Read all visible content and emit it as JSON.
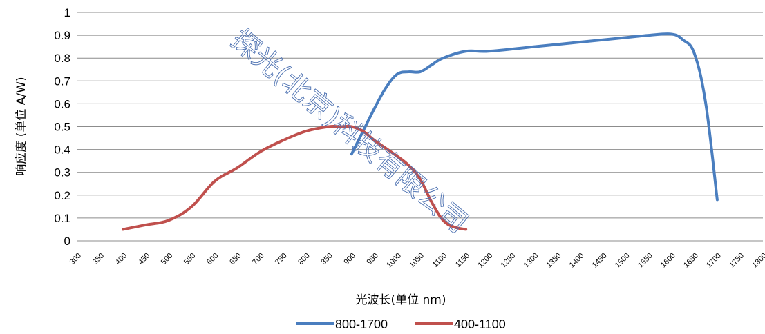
{
  "chart_data": {
    "type": "line",
    "title": "",
    "xlabel": "光波长(单位 nm)",
    "ylabel": "响应度 (单位 A/W)",
    "x_categories": [
      "300",
      "350",
      "400",
      "450",
      "500",
      "550",
      "600",
      "650",
      "700",
      "750",
      "800",
      "850",
      "900",
      "950",
      "1000",
      "1050",
      "1100",
      "1150",
      "1200",
      "1250",
      "1300",
      "1350",
      "1400",
      "1450",
      "1500",
      "1550",
      "1600",
      "1650",
      "1700",
      "1750",
      "1800"
    ],
    "y_ticks": [
      "0",
      "0.1",
      "0.2",
      "0.3",
      "0.4",
      "0.5",
      "0.6",
      "0.7",
      "0.8",
      "0.9",
      "1"
    ],
    "ylim": [
      0,
      1
    ],
    "xlim": [
      300,
      1800
    ],
    "grid": true,
    "legend_position": "bottom",
    "series": [
      {
        "name": "800-1700",
        "color": "#4a7ebf",
        "points": [
          [
            900,
            0.38
          ],
          [
            925,
            0.48
          ],
          [
            950,
            0.58
          ],
          [
            975,
            0.67
          ],
          [
            1000,
            0.73
          ],
          [
            1025,
            0.74
          ],
          [
            1050,
            0.74
          ],
          [
            1075,
            0.77
          ],
          [
            1100,
            0.8
          ],
          [
            1150,
            0.83
          ],
          [
            1200,
            0.83
          ],
          [
            1300,
            0.85
          ],
          [
            1400,
            0.87
          ],
          [
            1500,
            0.89
          ],
          [
            1550,
            0.9
          ],
          [
            1600,
            0.905
          ],
          [
            1625,
            0.88
          ],
          [
            1650,
            0.82
          ],
          [
            1675,
            0.6
          ],
          [
            1700,
            0.18
          ]
        ]
      },
      {
        "name": "400-1100",
        "color": "#c0504d",
        "points": [
          [
            400,
            0.05
          ],
          [
            450,
            0.07
          ],
          [
            500,
            0.09
          ],
          [
            550,
            0.15
          ],
          [
            600,
            0.26
          ],
          [
            650,
            0.32
          ],
          [
            700,
            0.39
          ],
          [
            750,
            0.44
          ],
          [
            800,
            0.48
          ],
          [
            850,
            0.5
          ],
          [
            875,
            0.5
          ],
          [
            900,
            0.5
          ],
          [
            925,
            0.48
          ],
          [
            950,
            0.44
          ],
          [
            1000,
            0.37
          ],
          [
            1025,
            0.33
          ],
          [
            1050,
            0.27
          ],
          [
            1075,
            0.17
          ],
          [
            1100,
            0.09
          ],
          [
            1125,
            0.06
          ],
          [
            1150,
            0.05
          ]
        ]
      }
    ]
  },
  "watermark": "探光(北京)科技有限公司"
}
